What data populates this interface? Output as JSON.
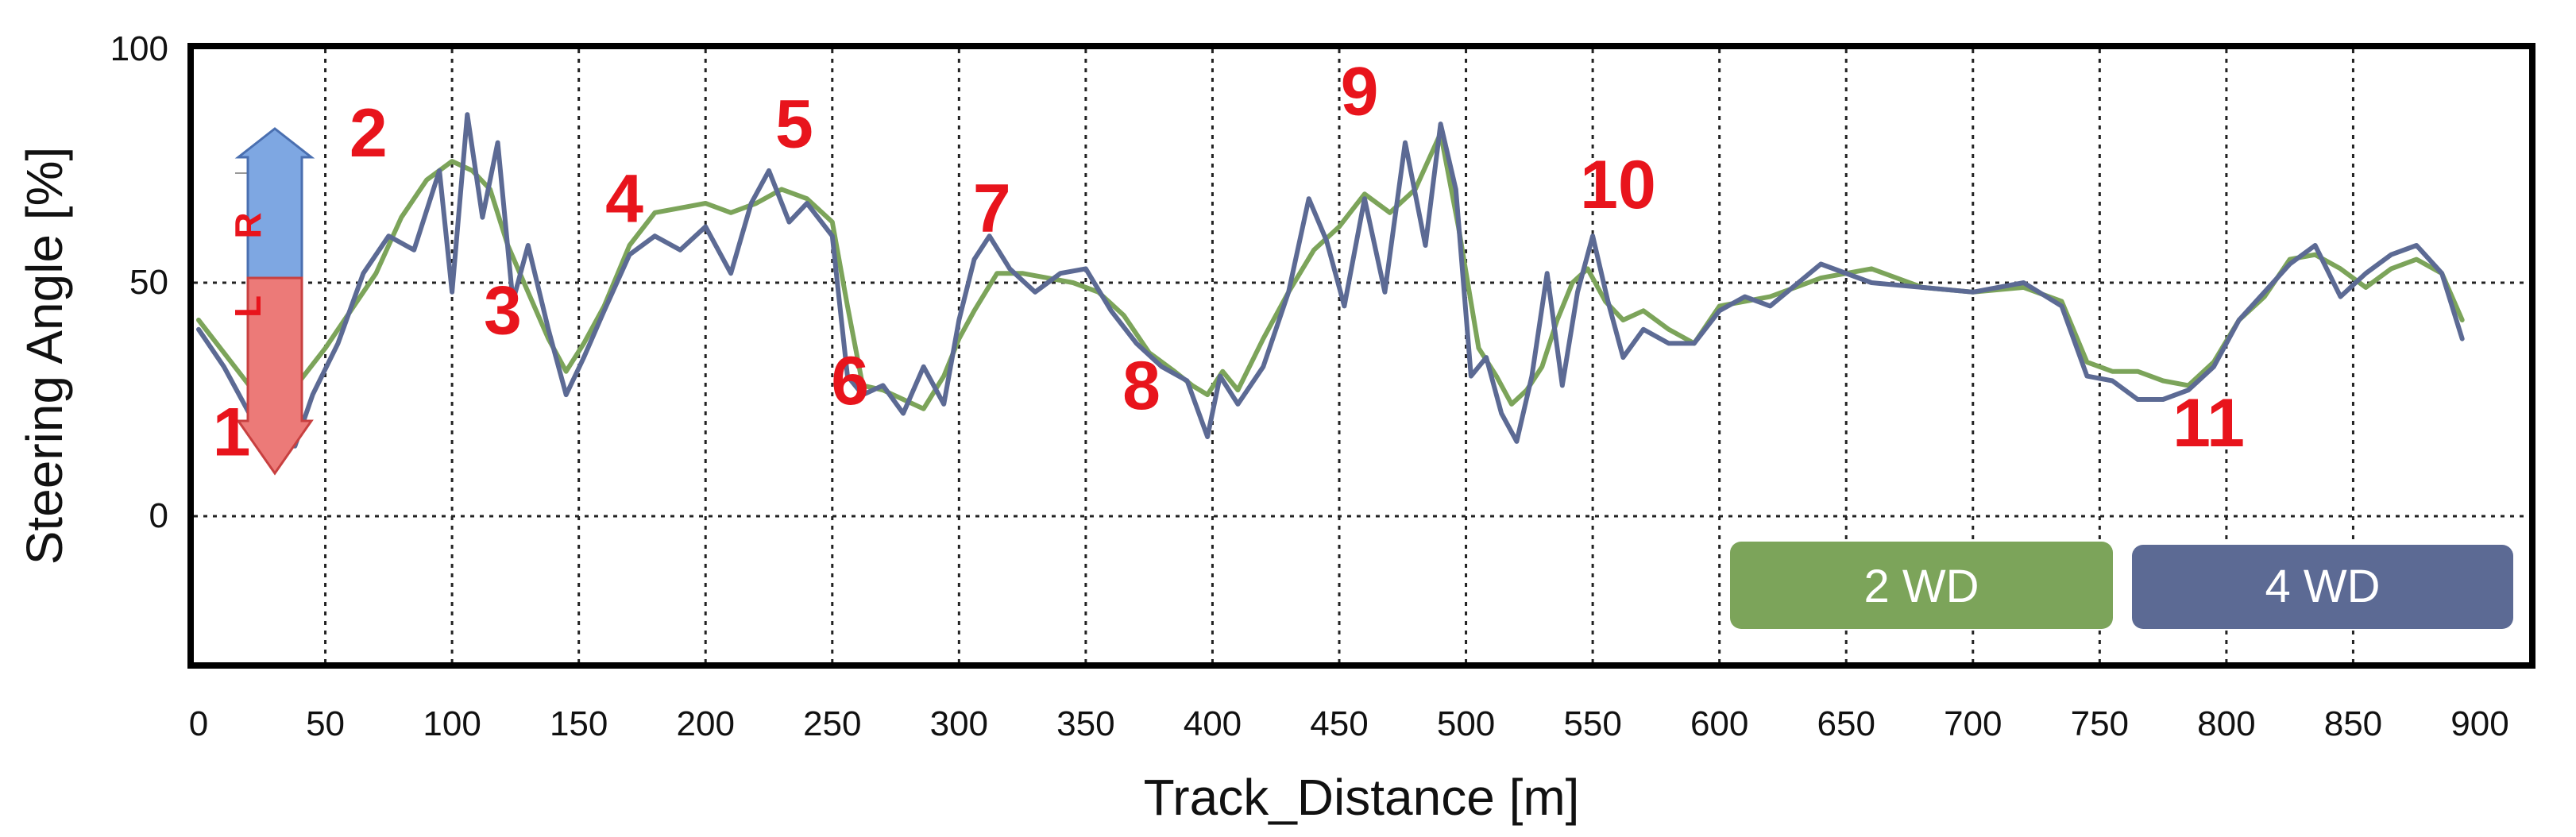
{
  "chart_data": {
    "type": "line",
    "title": "",
    "xlabel": "Track_Distance [m]",
    "ylabel": "Steering Angle  [%]",
    "xlim": [
      0,
      900
    ],
    "ylim": [
      -35,
      100
    ],
    "xticks": [
      0,
      50,
      100,
      150,
      200,
      250,
      300,
      350,
      400,
      450,
      500,
      550,
      600,
      650,
      700,
      750,
      800,
      850,
      900
    ],
    "yticks": [
      100,
      50,
      0
    ],
    "grid": true,
    "legend_position": "bottom-right",
    "series": [
      {
        "name": "2 WD",
        "color": "#7ca45a",
        "x": [
          0,
          10,
          20,
          30,
          40,
          50,
          60,
          70,
          80,
          90,
          100,
          108,
          115,
          122,
          130,
          138,
          145,
          152,
          160,
          170,
          180,
          190,
          200,
          210,
          220,
          230,
          240,
          250,
          256,
          262,
          270,
          278,
          286,
          294,
          300,
          306,
          315,
          325,
          335,
          345,
          355,
          365,
          375,
          385,
          392,
          398,
          404,
          410,
          420,
          430,
          440,
          450,
          460,
          470,
          480,
          490,
          497,
          505,
          512,
          518,
          524,
          530,
          536,
          542,
          548,
          555,
          562,
          570,
          580,
          590,
          600,
          620,
          640,
          660,
          680,
          700,
          720,
          735,
          745,
          755,
          765,
          775,
          785,
          795,
          805,
          815,
          825,
          835,
          845,
          855,
          865,
          875,
          885,
          893
        ],
        "values": [
          42,
          35,
          28,
          24,
          29,
          36,
          44,
          52,
          64,
          72,
          76,
          74,
          70,
          58,
          48,
          38,
          31,
          37,
          45,
          58,
          65,
          66,
          67,
          65,
          67,
          70,
          68,
          63,
          45,
          28,
          27,
          25,
          23,
          30,
          38,
          44,
          52,
          52,
          51,
          50,
          48,
          43,
          35,
          31,
          28,
          26,
          31,
          27,
          38,
          48,
          57,
          62,
          69,
          65,
          70,
          82,
          62,
          36,
          30,
          24,
          27,
          32,
          42,
          50,
          53,
          46,
          42,
          44,
          40,
          37,
          45,
          47,
          51,
          53,
          49,
          48,
          49,
          46,
          33,
          31,
          31,
          29,
          28,
          33,
          42,
          47,
          55,
          56,
          53,
          49,
          53,
          55,
          52,
          42
        ]
      },
      {
        "name": "4 WD",
        "color": "#5c6a94",
        "x": [
          0,
          10,
          20,
          30,
          38,
          45,
          55,
          65,
          75,
          85,
          95,
          100,
          106,
          112,
          118,
          124,
          130,
          138,
          145,
          152,
          160,
          170,
          180,
          190,
          200,
          210,
          218,
          225,
          233,
          240,
          250,
          256,
          262,
          270,
          278,
          286,
          294,
          300,
          306,
          312,
          320,
          330,
          340,
          350,
          360,
          370,
          380,
          390,
          398,
          403,
          410,
          420,
          430,
          438,
          445,
          452,
          460,
          468,
          476,
          484,
          490,
          496,
          502,
          508,
          514,
          520,
          526,
          532,
          538,
          544,
          550,
          556,
          562,
          570,
          580,
          590,
          600,
          610,
          620,
          640,
          660,
          680,
          700,
          720,
          735,
          745,
          755,
          765,
          775,
          785,
          795,
          805,
          815,
          825,
          835,
          845,
          855,
          865,
          875,
          885,
          893
        ],
        "values": [
          40,
          32,
          22,
          30,
          15,
          26,
          37,
          52,
          60,
          57,
          74,
          48,
          86,
          64,
          80,
          46,
          58,
          40,
          26,
          34,
          44,
          56,
          60,
          57,
          62,
          52,
          67,
          74,
          63,
          67,
          60,
          30,
          26,
          28,
          22,
          32,
          24,
          42,
          55,
          60,
          53,
          48,
          52,
          53,
          44,
          37,
          32,
          29,
          17,
          30,
          24,
          32,
          48,
          68,
          59,
          45,
          68,
          48,
          80,
          58,
          84,
          70,
          30,
          34,
          22,
          16,
          30,
          52,
          28,
          48,
          60,
          46,
          34,
          40,
          37,
          37,
          44,
          47,
          45,
          54,
          50,
          49,
          48,
          50,
          45,
          30,
          29,
          25,
          25,
          27,
          32,
          42,
          48,
          54,
          58,
          47,
          52,
          56,
          58,
          52,
          38
        ]
      }
    ],
    "annotations": [
      {
        "label": "1",
        "x": 13,
        "y": 13
      },
      {
        "label": "2",
        "x": 67,
        "y": 77
      },
      {
        "label": "3",
        "x": 120,
        "y": 39
      },
      {
        "label": "4",
        "x": 168,
        "y": 63
      },
      {
        "label": "5",
        "x": 235,
        "y": 79
      },
      {
        "label": "6",
        "x": 257,
        "y": 24
      },
      {
        "label": "7",
        "x": 313,
        "y": 61
      },
      {
        "label": "8",
        "x": 372,
        "y": 23
      },
      {
        "label": "9",
        "x": 458,
        "y": 86
      },
      {
        "label": "10",
        "x": 560,
        "y": 66
      },
      {
        "label": "11",
        "x": 793,
        "y": 15
      }
    ],
    "direction_arrow": {
      "up_label": "R",
      "down_label": "L",
      "up_color": "#7ea7e2",
      "down_color": "#ec7a78"
    }
  }
}
